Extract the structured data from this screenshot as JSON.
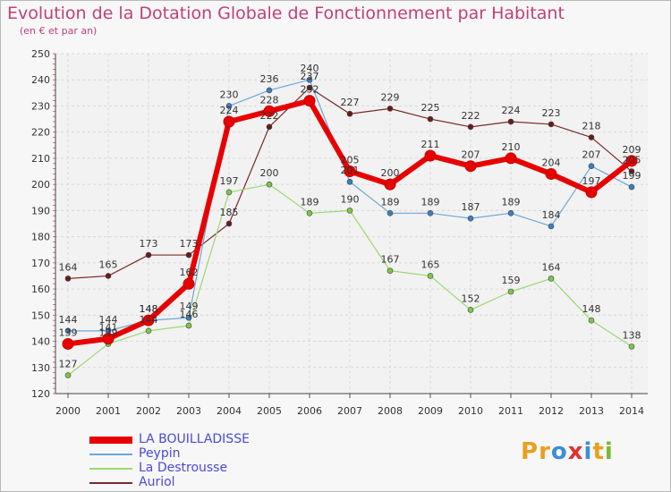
{
  "title": "Evolution de la Dotation Globale de Fonctionnement par Habitant",
  "subtitle": "(en € et par an)",
  "logo": {
    "text": "Proxiti",
    "letters": [
      "P",
      "r",
      "o",
      "x",
      "i",
      "t",
      "i"
    ],
    "colors": [
      "#e8a020",
      "#e8a020",
      "#3a8fd8",
      "#e03030",
      "#3a8fd8",
      "#e8a020",
      "#7ab833"
    ]
  },
  "colors": {
    "title": "#c0407a",
    "legend_text": "#4a4ad8",
    "grid": "#d8d8d8",
    "axis": "#555555"
  },
  "chart_data": {
    "type": "line",
    "x": [
      "2000",
      "2001",
      "2002",
      "2003",
      "2004",
      "2005",
      "2006",
      "2007",
      "2008",
      "2009",
      "2010",
      "2011",
      "2012",
      "2013",
      "2014"
    ],
    "ylim": [
      120,
      250
    ],
    "yticks": [
      120,
      130,
      140,
      150,
      160,
      170,
      180,
      190,
      200,
      210,
      220,
      230,
      240,
      250
    ],
    "grid": true,
    "legend_position": "bottom-left",
    "series": [
      {
        "name": "LA BOUILLADISSE",
        "color": "#e80000",
        "point_color": "#e80000",
        "width": 6,
        "values": [
          139,
          141,
          148,
          162,
          224,
          228,
          232,
          205,
          200,
          211,
          207,
          210,
          204,
          197,
          209
        ]
      },
      {
        "name": "Peypin",
        "color": "#6aa8d8",
        "point_color": "#3a7fc0",
        "width": 1.2,
        "values": [
          144,
          144,
          148,
          149,
          230,
          236,
          240,
          201,
          189,
          189,
          187,
          189,
          184,
          207,
          199
        ]
      },
      {
        "name": "La Destrousse",
        "color": "#9ad870",
        "point_color": "#7ac848",
        "width": 1.2,
        "values": [
          127,
          139,
          144,
          146,
          197,
          200,
          189,
          190,
          167,
          165,
          152,
          159,
          164,
          148,
          138
        ]
      },
      {
        "name": "Auriol",
        "color": "#7a2a2a",
        "point_color": "#6a1a1a",
        "width": 1.2,
        "values": [
          164,
          165,
          173,
          173,
          185,
          222,
          237,
          227,
          229,
          225,
          222,
          224,
          223,
          218,
          205
        ]
      }
    ]
  }
}
